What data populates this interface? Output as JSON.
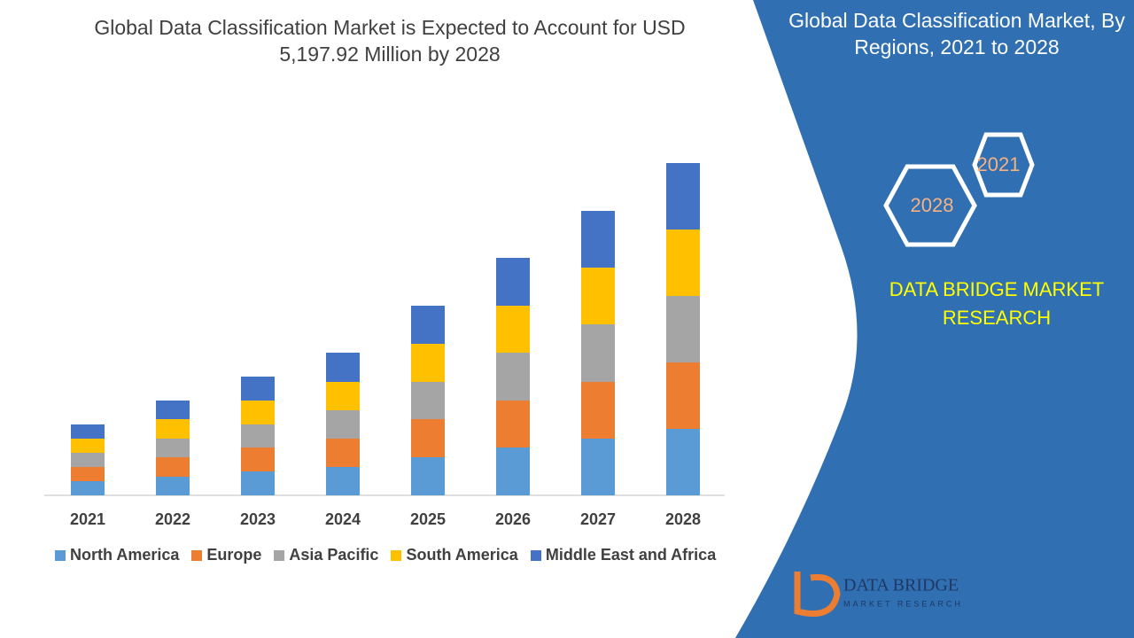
{
  "chart_data": {
    "type": "bar",
    "stacked": true,
    "title": "Global Data Classification Market is Expected to Account for USD 5,197.92 Million by 2028",
    "categories": [
      "2021",
      "2022",
      "2023",
      "2024",
      "2025",
      "2026",
      "2027",
      "2028"
    ],
    "series": [
      {
        "name": "North America",
        "color": "#5b9bd5",
        "values": [
          16,
          21,
          27,
          32,
          43,
          54,
          64,
          75
        ]
      },
      {
        "name": "Europe",
        "color": "#ed7d31",
        "values": [
          16,
          22,
          27,
          32,
          43,
          53,
          64,
          75
        ]
      },
      {
        "name": "Asia Pacific",
        "color": "#a5a5a5",
        "values": [
          16,
          21,
          26,
          32,
          42,
          54,
          65,
          75
        ]
      },
      {
        "name": "South America",
        "color": "#ffc000",
        "values": [
          16,
          22,
          27,
          32,
          43,
          53,
          64,
          75
        ]
      },
      {
        "name": "Middle East and Africa",
        "color": "#4472c4",
        "values": [
          16,
          21,
          27,
          33,
          43,
          54,
          64,
          75
        ]
      }
    ]
  },
  "panel": {
    "title": "Global Data Classification Market, By Regions, 2021 to 2028",
    "hexagons": [
      "2021",
      "2028"
    ],
    "brand": "DATA BRIDGE MARKET RESEARCH"
  },
  "logo": {
    "name": "DATA BRIDGE",
    "tagline": "MARKET RESEARCH"
  }
}
